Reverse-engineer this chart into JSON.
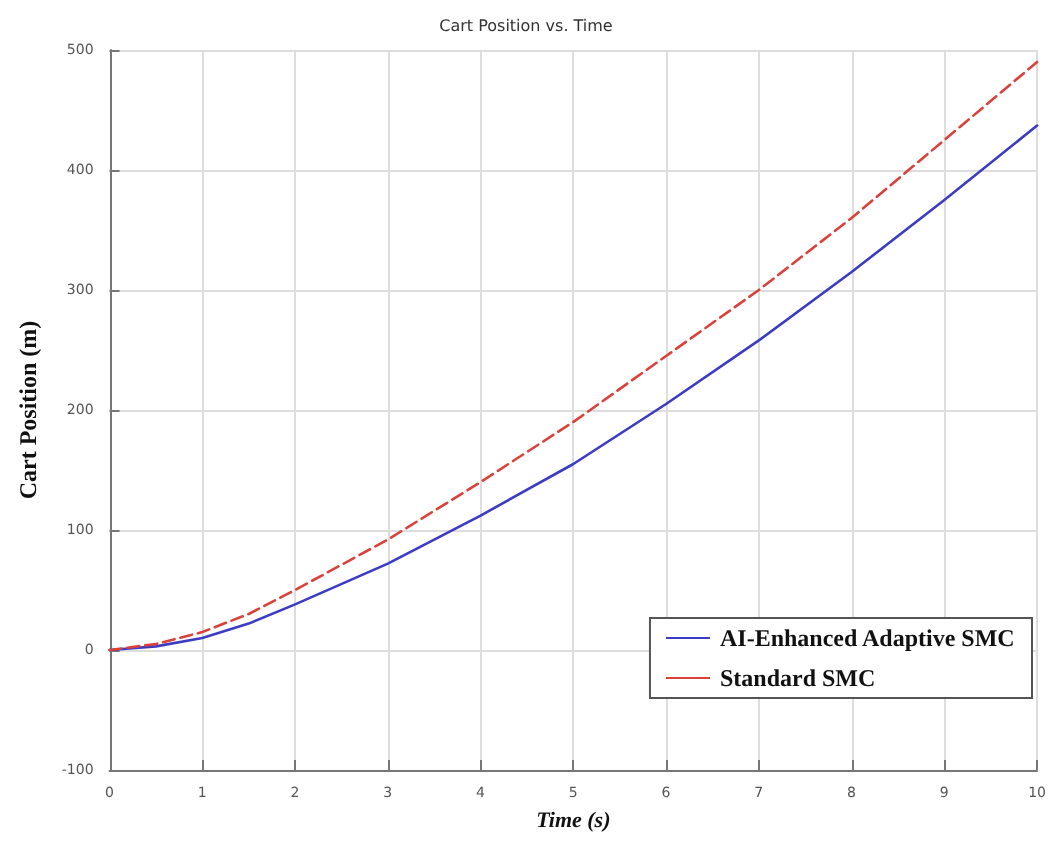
{
  "chart_data": {
    "type": "line",
    "title": "Cart Position vs. Time",
    "xlabel": "Time (s)",
    "ylabel": "Cart Position (m)",
    "x": [
      0,
      0.5,
      1,
      1.5,
      2,
      3,
      4,
      5,
      6,
      7,
      8,
      9,
      10
    ],
    "series": [
      {
        "name": "AI-Enhanced Adaptive SMC",
        "color": "#3b3bc4",
        "line_style": "solid",
        "values": [
          0,
          3,
          10,
          22,
          38,
          72,
          112,
          155,
          205,
          258,
          315,
          375,
          437
        ]
      },
      {
        "name": "Standard SMC",
        "color": "#d9413a",
        "line_style": "dashed",
        "values": [
          0,
          5,
          15,
          30,
          50,
          92,
          140,
          190,
          245,
          300,
          360,
          425,
          490
        ]
      }
    ],
    "xlim": [
      0,
      10
    ],
    "xticks": [
      0,
      1,
      2,
      3,
      4,
      5,
      6,
      7,
      8,
      9,
      10
    ],
    "ylim": [
      -100,
      500
    ],
    "yticks": [
      -100,
      0,
      100,
      200,
      300,
      400,
      500
    ],
    "grid": true,
    "legend": "bottom right",
    "marker": "none"
  }
}
